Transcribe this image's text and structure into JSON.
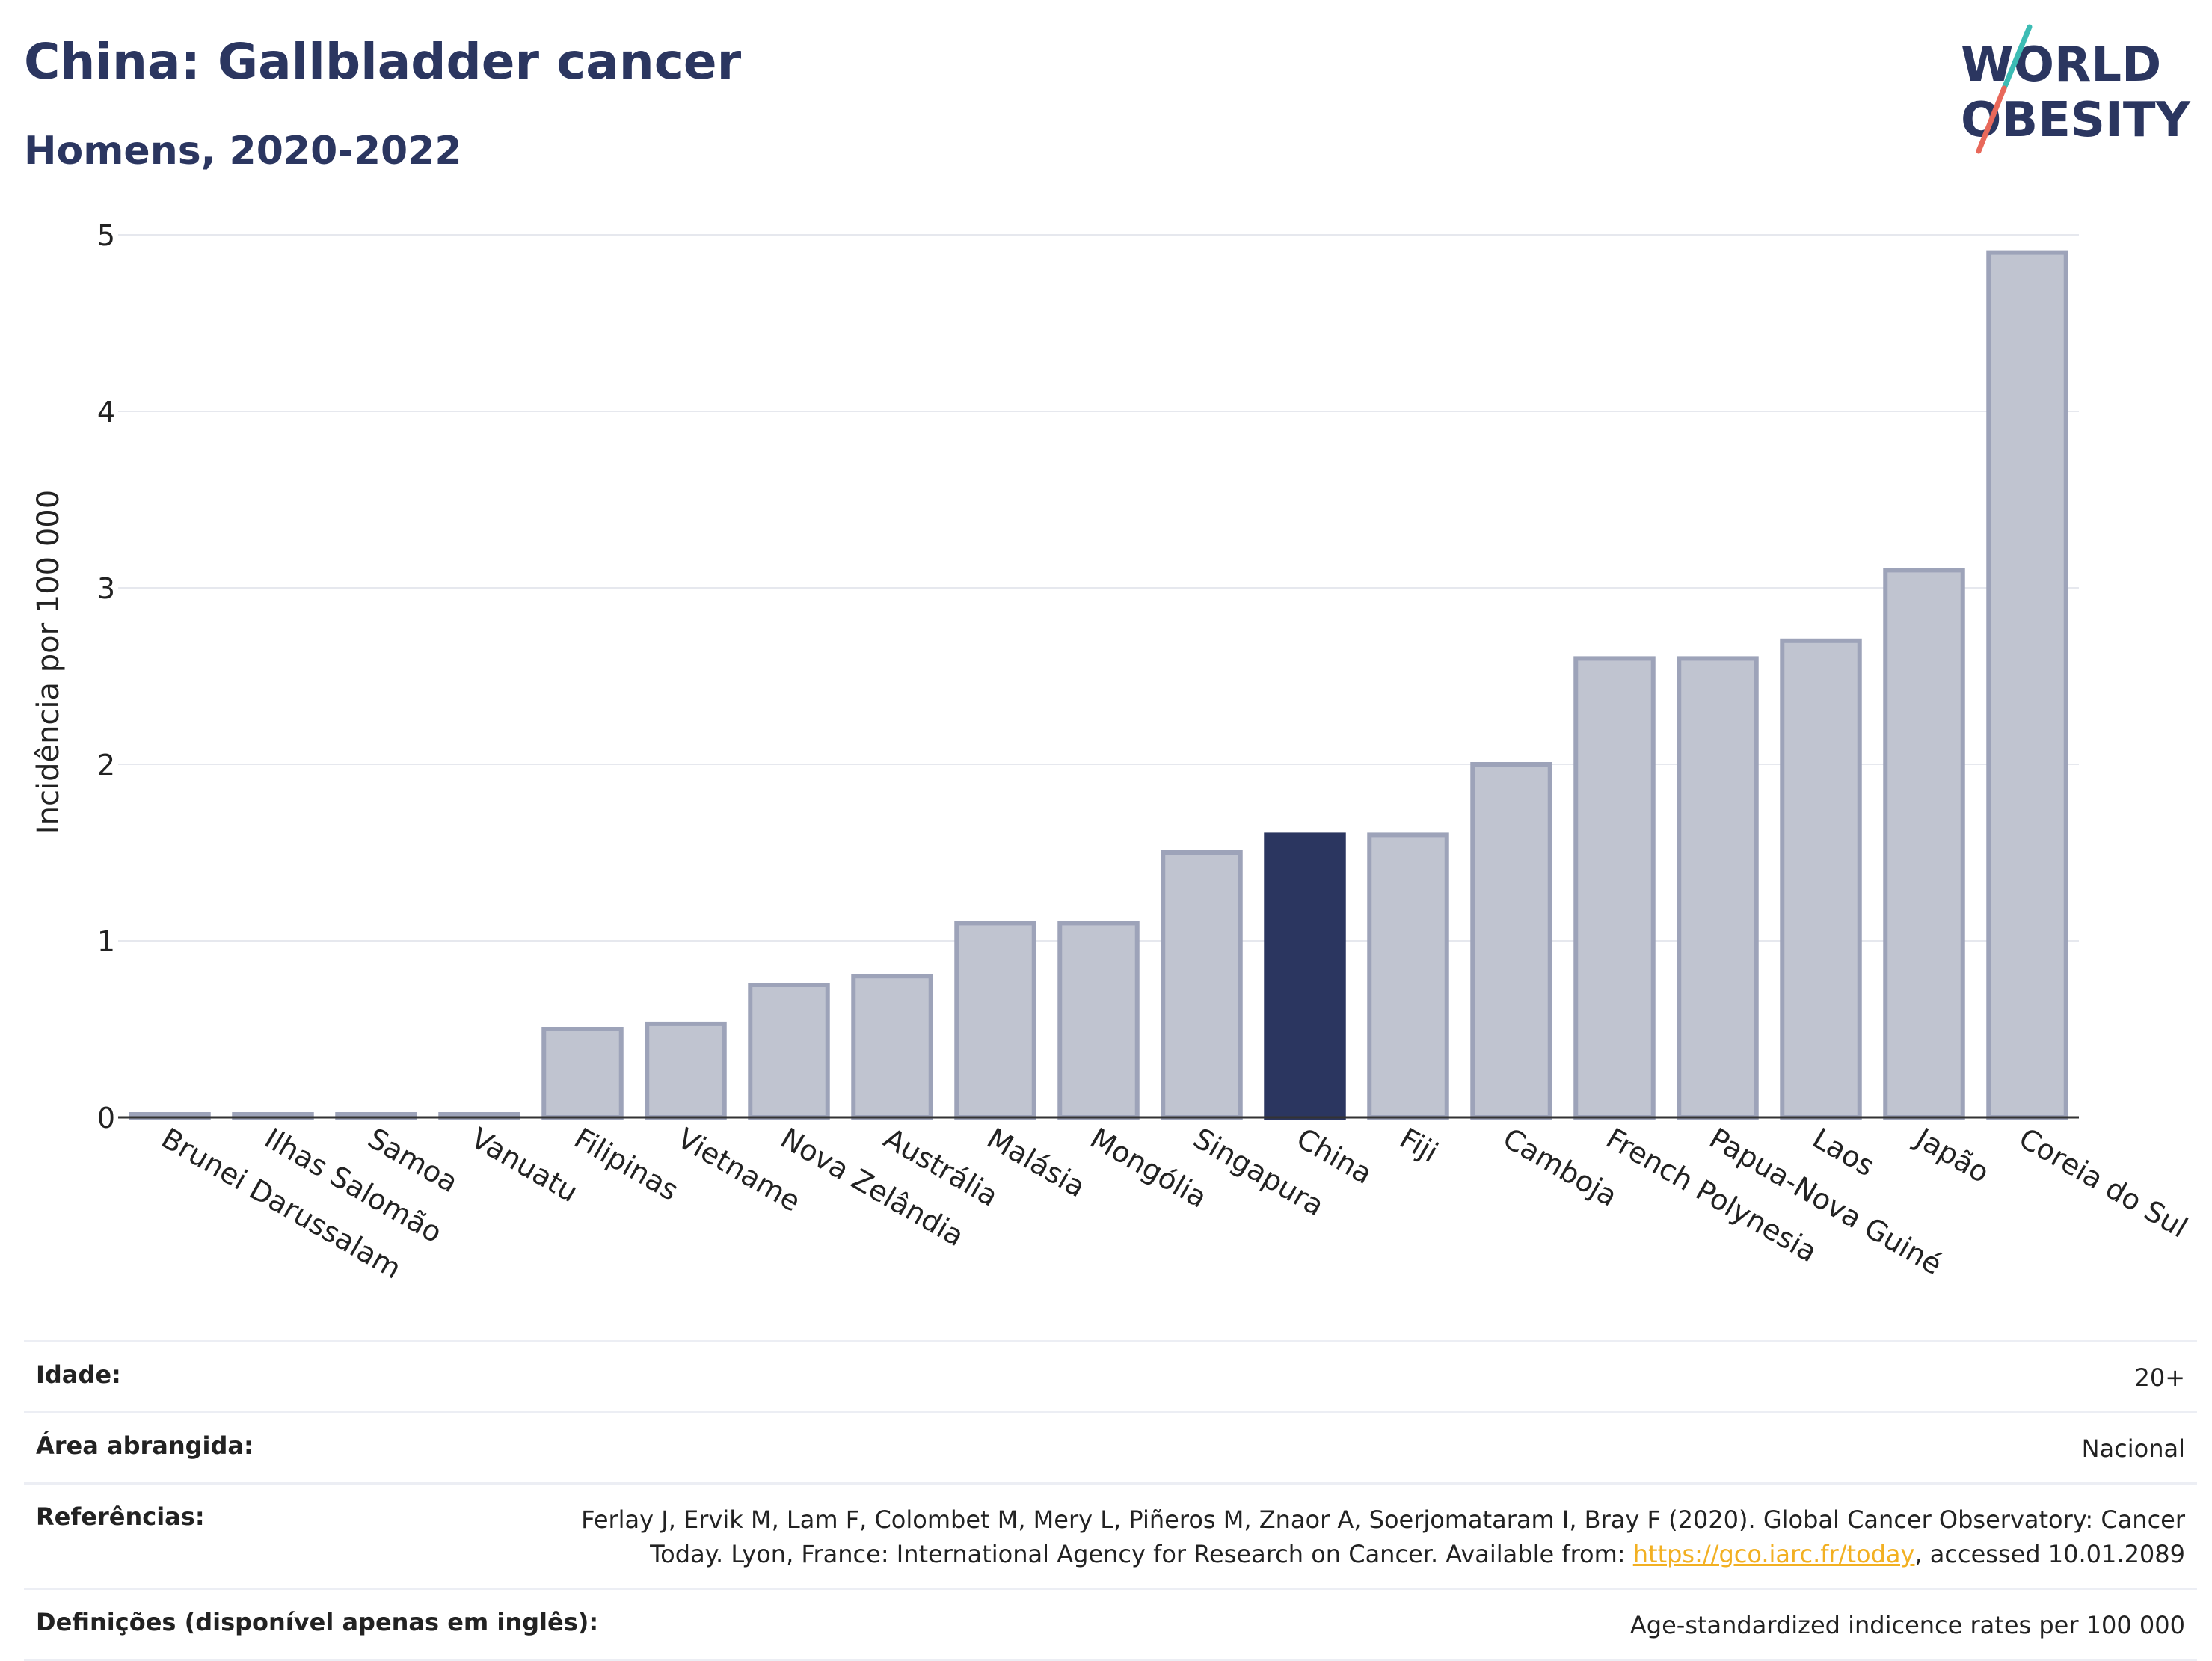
{
  "header": {
    "title": "China: Gallbladder cancer",
    "subtitle": "Homens, 2020-2022"
  },
  "logo": {
    "line1": "WØRLD",
    "line2": "ØBESITY",
    "text": "WORLD OBESITY"
  },
  "colors": {
    "highlight": "#2b3660",
    "bar": "#c0c4d0",
    "bar_border": "#9da3b9",
    "grid": "#e6e8ee",
    "accent_teal": "#3cbcb4",
    "accent_red": "#e8685a"
  },
  "chart_data": {
    "type": "bar",
    "title": "China: Gallbladder cancer",
    "subtitle": "Homens, 2020-2022",
    "ylabel": "Incidência por 100 000",
    "xlabel": "",
    "ylim": [
      0,
      5
    ],
    "yticks": [
      0,
      1,
      2,
      3,
      4,
      5
    ],
    "grid": true,
    "highlight": "China",
    "categories": [
      "Brunei Darussalam",
      "Ilhas Salomão",
      "Samoa",
      "Vanuatu",
      "Filipinas",
      "Vietname",
      "Nova Zelândia",
      "Austrália",
      "Malásia",
      "Mongólia",
      "Singapura",
      "China",
      "Fiji",
      "Camboja",
      "French Polynesia",
      "Papua-Nova Guiné",
      "Laos",
      "Japão",
      "Coreia do Sul"
    ],
    "values": [
      0.0,
      0.0,
      0.0,
      0.0,
      0.5,
      0.53,
      0.75,
      0.8,
      1.1,
      1.1,
      1.5,
      1.6,
      1.6,
      2.0,
      2.6,
      2.6,
      2.7,
      3.1,
      4.9
    ]
  },
  "info": {
    "age": {
      "label": "Idade:",
      "value": "20+"
    },
    "area": {
      "label": "Área abrangida:",
      "value": "Nacional"
    },
    "refs": {
      "label": "Referências:",
      "text_before": "Ferlay J, Ervik M, Lam F, Colombet M, Mery L, Piñeros M, Znaor A, Soerjomataram I, Bray F (2020). Global Cancer Observatory: Cancer Today. Lyon, France: International Agency for Research on Cancer. Available from: ",
      "link": "https://gco.iarc.fr/today",
      "text_after": ", accessed 10.01.2089"
    },
    "defs": {
      "label": "Definições (disponível apenas em inglês):",
      "value": "Age-standardized indicence rates per 100 000"
    }
  }
}
